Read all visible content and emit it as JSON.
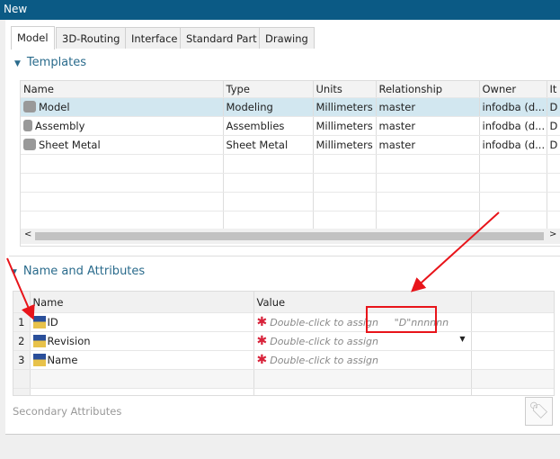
{
  "window": {
    "title": "New"
  },
  "tabs": [
    {
      "label": "Model",
      "active": true
    },
    {
      "label": "3D-Routing"
    },
    {
      "label": "Interface"
    },
    {
      "label": "Standard Part"
    },
    {
      "label": "Drawing"
    }
  ],
  "templates": {
    "heading": "Templates",
    "columns": [
      "Name",
      "Type",
      "Units",
      "Relationship",
      "Owner",
      "It"
    ],
    "rows": [
      {
        "icon": "model-icon",
        "cells": [
          "Model",
          "Modeling",
          "Millimeters",
          "master",
          "infodba (d...",
          "D"
        ],
        "selected": true
      },
      {
        "icon": "assembly-icon",
        "cells": [
          "Assembly",
          "Assemblies",
          "Millimeters",
          "master",
          "infodba (d...",
          "D"
        ]
      },
      {
        "icon": "sheet-metal-icon",
        "cells": [
          "Sheet Metal",
          "Sheet Metal",
          "Millimeters",
          "master",
          "infodba (d...",
          "D"
        ]
      }
    ]
  },
  "attributes": {
    "heading": "Name and Attributes",
    "columns": [
      "Name",
      "Value"
    ],
    "rows": [
      {
        "num": "1",
        "name": "ID",
        "value": "Double-click to assign",
        "hint": "\"D\"nnnnnn"
      },
      {
        "num": "2",
        "name": "Revision",
        "value": "Double-click to assign",
        "dropdown": true
      },
      {
        "num": "3",
        "name": "Name",
        "value": "Double-click to assign"
      }
    ],
    "secondary": "Secondary Attributes"
  },
  "annotation_color": "#e8141a"
}
